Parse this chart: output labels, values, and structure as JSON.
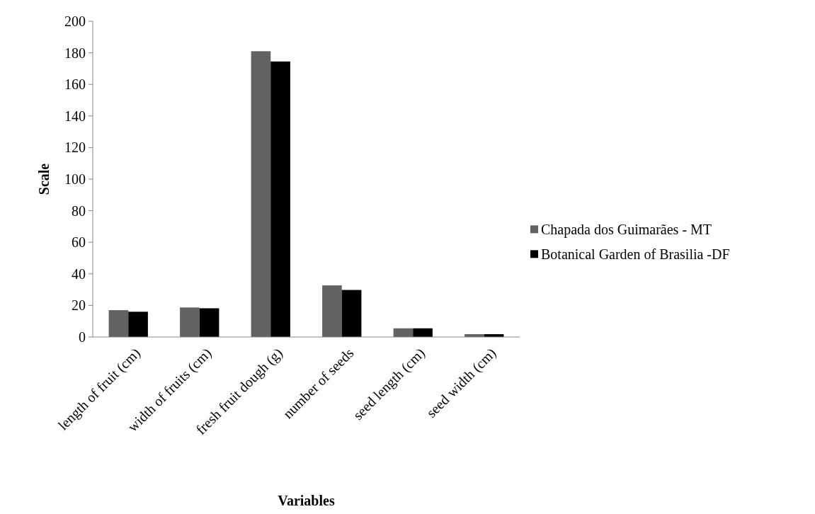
{
  "chart_data": {
    "type": "bar",
    "xlabel": "Variables",
    "ylabel": "Scale",
    "categories": [
      "length of fruit (cm)",
      "width of fruits (cm)",
      "fresh fruit dough (g)",
      "number of seeds",
      "seed length (cm)",
      "seed width (cm)"
    ],
    "series": [
      {
        "name": "Chapada dos Guimarães - MT",
        "color": "#626262",
        "values": [
          17,
          18.7,
          181,
          32.7,
          5.5,
          1.8
        ]
      },
      {
        "name": "Botanical Garden of Brasilia -DF",
        "color": "#000000",
        "values": [
          16,
          18.2,
          174.5,
          29.8,
          5.5,
          1.8
        ]
      }
    ],
    "ylim": [
      0,
      200
    ],
    "yticks": [
      0,
      20,
      40,
      60,
      80,
      100,
      120,
      140,
      160,
      180,
      200
    ],
    "grid": false,
    "legend": "right"
  }
}
